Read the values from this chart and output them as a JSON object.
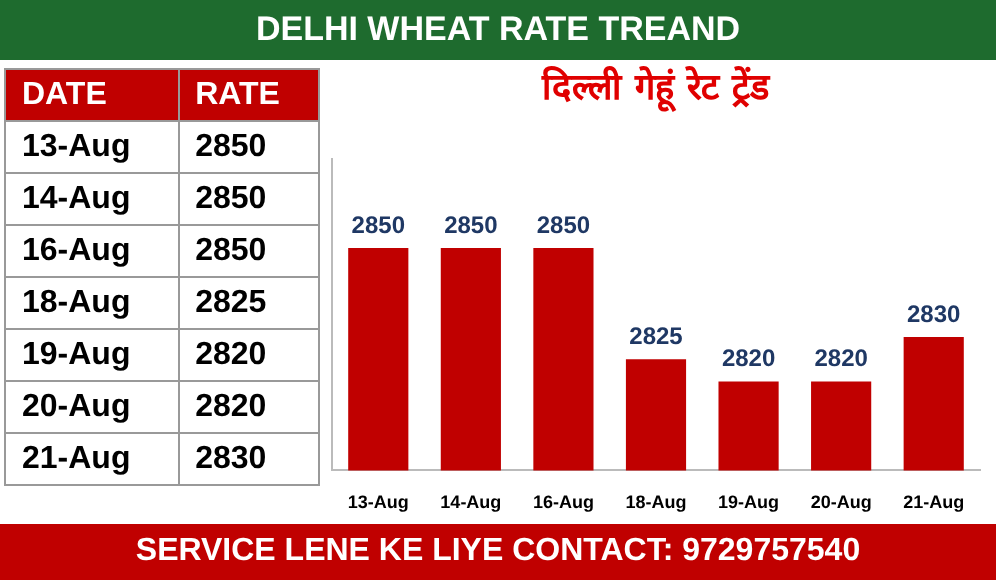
{
  "chart_data": {
    "type": "bar",
    "title": "DELHI WHEAT RATE TREAND",
    "subtitle": "दिल्ली गेहूं रेट ट्रेंड",
    "categories": [
      "13-Aug",
      "14-Aug",
      "16-Aug",
      "18-Aug",
      "19-Aug",
      "20-Aug",
      "21-Aug"
    ],
    "values": [
      2850,
      2850,
      2850,
      2825,
      2820,
      2820,
      2830
    ],
    "value_labels": [
      "2850",
      "2850",
      "2850",
      "2825",
      "2820",
      "2820",
      "2830"
    ],
    "color": "#c00000",
    "ylim": [
      2800,
      2870
    ],
    "annotations": [
      "DATE",
      "RATE",
      "SERVICE LENE KE LIYE CONTACT: 9729757540"
    ]
  }
}
